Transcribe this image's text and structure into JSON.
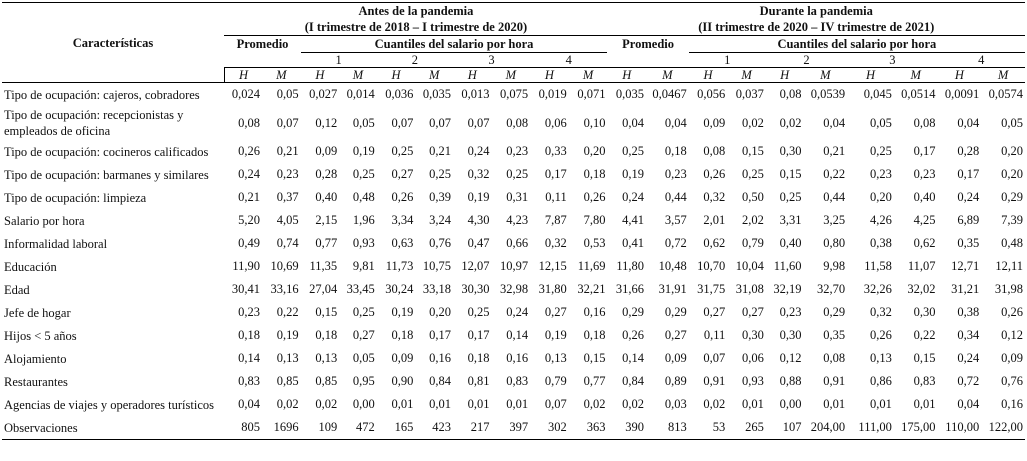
{
  "header": {
    "characteristics": "Características",
    "before_title": "Antes de la pandemia",
    "before_period": "(I trimestre de 2018 – I trimestre de 2020)",
    "during_title": "Durante la pandemia",
    "during_period": "(II trimestre de 2020 – IV trimestre de 2021)",
    "promedio": "Promedio",
    "quantiles": "Cuantiles del salario por hora",
    "q1": "1",
    "q2": "2",
    "q3": "3",
    "q4": "4",
    "h": "H",
    "m": "M"
  },
  "rows": [
    {
      "label": "Tipo de ocupación: cajeros, cobradores",
      "values": [
        "0,024",
        "0,05",
        "0,027",
        "0,014",
        "0,036",
        "0,035",
        "0,013",
        "0,075",
        "0,019",
        "0,071",
        "0,035",
        "0,0467",
        "0,056",
        "0,037",
        "0,08",
        "0,0539",
        "0,045",
        "0,0514",
        "0,0091",
        "0,0574"
      ]
    },
    {
      "label": "Tipo de ocupación: recepcionistas y empleados de oficina",
      "values": [
        "0,08",
        "0,07",
        "0,12",
        "0,05",
        "0,07",
        "0,07",
        "0,07",
        "0,08",
        "0,06",
        "0,10",
        "0,04",
        "0,04",
        "0,09",
        "0,02",
        "0,02",
        "0,04",
        "0,05",
        "0,08",
        "0,04",
        "0,05"
      ]
    },
    {
      "label": "Tipo de ocupación: cocineros calificados",
      "values": [
        "0,26",
        "0,21",
        "0,09",
        "0,19",
        "0,25",
        "0,21",
        "0,24",
        "0,23",
        "0,33",
        "0,20",
        "0,25",
        "0,18",
        "0,08",
        "0,15",
        "0,30",
        "0,21",
        "0,25",
        "0,17",
        "0,28",
        "0,20"
      ]
    },
    {
      "label": "Tipo de ocupación: barmanes y similares",
      "values": [
        "0,24",
        "0,23",
        "0,28",
        "0,25",
        "0,27",
        "0,25",
        "0,32",
        "0,25",
        "0,17",
        "0,18",
        "0,19",
        "0,23",
        "0,26",
        "0,25",
        "0,15",
        "0,22",
        "0,23",
        "0,23",
        "0,17",
        "0,20"
      ]
    },
    {
      "label": "Tipo de ocupación: limpieza",
      "values": [
        "0,21",
        "0,37",
        "0,40",
        "0,48",
        "0,26",
        "0,39",
        "0,19",
        "0,31",
        "0,11",
        "0,26",
        "0,24",
        "0,44",
        "0,32",
        "0,50",
        "0,25",
        "0,44",
        "0,20",
        "0,40",
        "0,24",
        "0,29"
      ]
    },
    {
      "label": "Salario por hora",
      "values": [
        "5,20",
        "4,05",
        "2,15",
        "1,96",
        "3,34",
        "3,24",
        "4,30",
        "4,23",
        "7,87",
        "7,80",
        "4,41",
        "3,57",
        "2,01",
        "2,02",
        "3,31",
        "3,25",
        "4,26",
        "4,25",
        "6,89",
        "7,39"
      ]
    },
    {
      "label": "Informalidad laboral",
      "values": [
        "0,49",
        "0,74",
        "0,77",
        "0,93",
        "0,63",
        "0,76",
        "0,47",
        "0,66",
        "0,32",
        "0,53",
        "0,41",
        "0,72",
        "0,62",
        "0,79",
        "0,40",
        "0,80",
        "0,38",
        "0,62",
        "0,35",
        "0,48"
      ]
    },
    {
      "label": "Educación",
      "values": [
        "11,90",
        "10,69",
        "11,35",
        "9,81",
        "11,73",
        "10,75",
        "12,07",
        "10,97",
        "12,15",
        "11,69",
        "11,80",
        "10,48",
        "10,70",
        "10,04",
        "11,60",
        "9,98",
        "11,58",
        "11,07",
        "12,71",
        "12,11"
      ]
    },
    {
      "label": "Edad",
      "values": [
        "30,41",
        "33,16",
        "27,04",
        "33,45",
        "30,24",
        "33,18",
        "30,30",
        "32,98",
        "31,80",
        "32,21",
        "31,66",
        "31,91",
        "31,75",
        "31,08",
        "32,19",
        "32,70",
        "32,26",
        "32,02",
        "31,21",
        "31,98"
      ]
    },
    {
      "label": "Jefe de hogar",
      "values": [
        "0,23",
        "0,22",
        "0,15",
        "0,25",
        "0,19",
        "0,20",
        "0,25",
        "0,24",
        "0,27",
        "0,16",
        "0,29",
        "0,29",
        "0,27",
        "0,27",
        "0,23",
        "0,29",
        "0,32",
        "0,30",
        "0,38",
        "0,26"
      ]
    },
    {
      "label": "Hijos < 5 años",
      "values": [
        "0,18",
        "0,19",
        "0,18",
        "0,27",
        "0,18",
        "0,17",
        "0,17",
        "0,14",
        "0,19",
        "0,18",
        "0,26",
        "0,27",
        "0,11",
        "0,30",
        "0,30",
        "0,35",
        "0,26",
        "0,22",
        "0,34",
        "0,12"
      ]
    },
    {
      "label": "Alojamiento",
      "values": [
        "0,14",
        "0,13",
        "0,13",
        "0,05",
        "0,09",
        "0,16",
        "0,18",
        "0,16",
        "0,13",
        "0,15",
        "0,14",
        "0,09",
        "0,07",
        "0,06",
        "0,12",
        "0,08",
        "0,13",
        "0,15",
        "0,24",
        "0,09"
      ]
    },
    {
      "label": "Restaurantes",
      "values": [
        "0,83",
        "0,85",
        "0,85",
        "0,95",
        "0,90",
        "0,84",
        "0,81",
        "0,83",
        "0,79",
        "0,77",
        "0,84",
        "0,89",
        "0,91",
        "0,93",
        "0,88",
        "0,91",
        "0,86",
        "0,83",
        "0,72",
        "0,76"
      ]
    },
    {
      "label": "Agencias de viajes y operadores turísticos",
      "values": [
        "0,04",
        "0,02",
        "0,02",
        "0,00",
        "0,01",
        "0,01",
        "0,01",
        "0,01",
        "0,07",
        "0,02",
        "0,02",
        "0,03",
        "0,02",
        "0,01",
        "0,00",
        "0,01",
        "0,01",
        "0,01",
        "0,04",
        "0,16"
      ]
    },
    {
      "label": "Observaciones",
      "values": [
        "805",
        "1696",
        "109",
        "472",
        "165",
        "423",
        "217",
        "397",
        "302",
        "363",
        "390",
        "813",
        "53",
        "265",
        "107",
        "204,00",
        "111,00",
        "175,00",
        "110,00",
        "122,00"
      ]
    }
  ]
}
